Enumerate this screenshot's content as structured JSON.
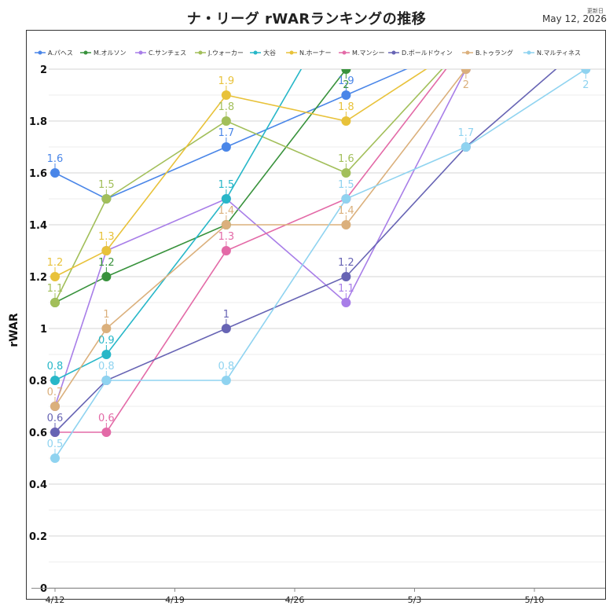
{
  "header": {
    "title": "ナ・リーグ rWARランキングの推移",
    "updated_label": "更新日",
    "updated_date": "May 12, 2026"
  },
  "chart_data": {
    "type": "line",
    "title": "ナ・リーグ rWARランキングの推移",
    "xlabel": "",
    "ylabel": "rWAR",
    "x_ticks": [
      "4/12",
      "4/19",
      "4/26",
      "5/3",
      "5/10"
    ],
    "y_ticks": [
      "0",
      "0.2",
      "0.4",
      "0.6",
      "0.8",
      "1",
      "1.2",
      "1.4",
      "1.6",
      "1.8",
      "2"
    ],
    "ylim": [
      0,
      2
    ],
    "grid": true,
    "legend_position": "top",
    "dates": [
      "4/12",
      "4/15",
      "4/22",
      "4/29",
      "5/6",
      "5/13"
    ],
    "series": [
      {
        "name": "A.パヘス",
        "color": "#4a86e8",
        "values": [
          1.6,
          1.5,
          1.7,
          1.9,
          2.1,
          null
        ]
      },
      {
        "name": "M.オルソン",
        "color": "#38923c",
        "values": [
          1.1,
          1.2,
          1.4,
          2.0,
          null,
          null
        ]
      },
      {
        "name": "C.サンチェス",
        "color": "#a87ee8",
        "values": [
          0.7,
          1.3,
          1.5,
          1.1,
          2.0,
          null
        ]
      },
      {
        "name": "J.ウォーカー",
        "color": "#a2bf5a",
        "values": [
          1.1,
          1.5,
          1.8,
          1.6,
          2.1,
          null
        ]
      },
      {
        "name": "大谷",
        "color": "#27b7c8",
        "values": [
          0.8,
          0.9,
          1.5,
          2.3,
          null,
          null
        ]
      },
      {
        "name": "N.ホーナー",
        "color": "#e8c23a",
        "values": [
          1.2,
          1.3,
          1.9,
          1.8,
          2.1,
          null
        ]
      },
      {
        "name": "M.マンシー",
        "color": "#e36aa7",
        "values": [
          0.6,
          0.6,
          1.3,
          1.5,
          2.1,
          null
        ]
      },
      {
        "name": "D.ボールドウィン",
        "color": "#6764b4",
        "values": [
          0.6,
          0.8,
          1.0,
          1.2,
          1.7,
          2.1
        ]
      },
      {
        "name": "B.トゥラング",
        "color": "#dbb07c",
        "values": [
          0.7,
          1.0,
          1.4,
          1.4,
          2.0,
          null
        ]
      },
      {
        "name": "N.マルティネス",
        "color": "#8fd3f0",
        "values": [
          0.5,
          0.8,
          0.8,
          1.5,
          1.7,
          2.0
        ]
      }
    ],
    "labels": [
      {
        "series": 0,
        "i": 0,
        "text": "1.6",
        "pos": "above"
      },
      {
        "series": 0,
        "i": 2,
        "text": "1.7",
        "pos": "above"
      },
      {
        "series": 0,
        "i": 3,
        "text": "1.9",
        "pos": "above"
      },
      {
        "series": 1,
        "i": 1,
        "text": "1.2",
        "pos": "above"
      },
      {
        "series": 1,
        "i": 3,
        "text": "2",
        "pos": "below"
      },
      {
        "series": 3,
        "i": 0,
        "text": "1.1",
        "pos": "above"
      },
      {
        "series": 3,
        "i": 1,
        "text": "1.5",
        "pos": "above"
      },
      {
        "series": 3,
        "i": 2,
        "text": "1.8",
        "pos": "above"
      },
      {
        "series": 3,
        "i": 3,
        "text": "1.6",
        "pos": "above"
      },
      {
        "series": 4,
        "i": 0,
        "text": "0.8",
        "pos": "above"
      },
      {
        "series": 4,
        "i": 1,
        "text": "0.9",
        "pos": "above"
      },
      {
        "series": 4,
        "i": 2,
        "text": "1.5",
        "pos": "above"
      },
      {
        "series": 5,
        "i": 0,
        "text": "1.2",
        "pos": "above"
      },
      {
        "series": 5,
        "i": 1,
        "text": "1.3",
        "pos": "above"
      },
      {
        "series": 5,
        "i": 2,
        "text": "1.9",
        "pos": "above"
      },
      {
        "series": 5,
        "i": 3,
        "text": "1.8",
        "pos": "above"
      },
      {
        "series": 6,
        "i": 1,
        "text": "0.6",
        "pos": "above"
      },
      {
        "series": 6,
        "i": 2,
        "text": "1.3",
        "pos": "above"
      },
      {
        "series": 7,
        "i": 0,
        "text": "0.6",
        "pos": "above"
      },
      {
        "series": 7,
        "i": 2,
        "text": "1",
        "pos": "above"
      },
      {
        "series": 7,
        "i": 3,
        "text": "1.2",
        "pos": "above"
      },
      {
        "series": 8,
        "i": 0,
        "text": "0.7",
        "pos": "above"
      },
      {
        "series": 8,
        "i": 1,
        "text": "1",
        "pos": "above"
      },
      {
        "series": 8,
        "i": 2,
        "text": "1.4",
        "pos": "above"
      },
      {
        "series": 8,
        "i": 3,
        "text": "1.4",
        "pos": "above"
      },
      {
        "series": 8,
        "i": 4,
        "text": "2",
        "pos": "below"
      },
      {
        "series": 2,
        "i": 3,
        "text": "1.1",
        "pos": "above"
      },
      {
        "series": 9,
        "i": 0,
        "text": "0.5",
        "pos": "above"
      },
      {
        "series": 9,
        "i": 1,
        "text": "0.8",
        "pos": "above"
      },
      {
        "series": 9,
        "i": 2,
        "text": "0.8",
        "pos": "above"
      },
      {
        "series": 9,
        "i": 3,
        "text": "1.5",
        "pos": "above"
      },
      {
        "series": 9,
        "i": 4,
        "text": "1.7",
        "pos": "above"
      },
      {
        "series": 9,
        "i": 5,
        "text": "2",
        "pos": "below"
      }
    ]
  }
}
